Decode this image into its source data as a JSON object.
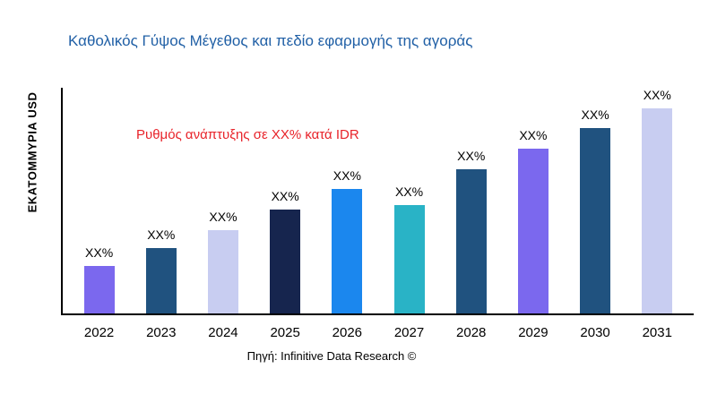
{
  "title": "Καθολικός Γύψος Μέγεθος και πεδίο εφαρμογής της αγοράς",
  "ylabel": "ΕΚΑΤΟΜΜΥΡΙΑ USD",
  "annotation": "Ρυθμός ανάπτυξης σε XX% κατά IDR",
  "source": "Πηγή: Infinitive Data Research ©",
  "colors": {
    "title": "#2160a6",
    "annotation": "#e8232a",
    "axis": "#000000"
  },
  "chart_data": {
    "type": "bar",
    "title": "Καθολικός Γύψος Μέγεθος και πεδίο εφαρμογής της αγοράς",
    "xlabel": "",
    "ylabel": "ΕΚΑΤΟΜΜΥΡΙΑ USD",
    "categories": [
      "2022",
      "2023",
      "2024",
      "2025",
      "2026",
      "2027",
      "2028",
      "2029",
      "2030",
      "2031"
    ],
    "values": [
      21,
      29,
      37,
      46,
      55,
      48,
      64,
      73,
      82,
      92
    ],
    "bar_labels": [
      "XX%",
      "XX%",
      "XX%",
      "XX%",
      "XX%",
      "XX%",
      "XX%",
      "XX%",
      "XX%",
      "XX%"
    ],
    "bar_colors": [
      "#7b68ee",
      "#20527f",
      "#c8cdf1",
      "#16254e",
      "#1b87ee",
      "#29b3c6",
      "#20527f",
      "#7b68ee",
      "#20527f",
      "#c8cdf1"
    ],
    "ylim": [
      0,
      100
    ],
    "grid": false,
    "legend": false,
    "annotation": "Ρυθμός ανάπτυξης σε XX% κατά IDR"
  }
}
